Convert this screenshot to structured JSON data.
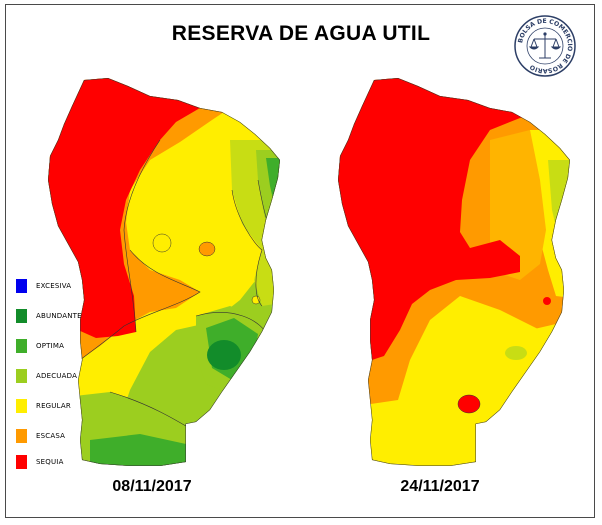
{
  "title": "RESERVA DE AGUA UTIL",
  "seal": {
    "text": "BOLSA DE COMERCIO DE ROSARIO",
    "icon": "scales-of-justice-logo"
  },
  "legend": {
    "items": [
      {
        "label": "EXCESIVA",
        "color": "#0000ee"
      },
      {
        "label": "ABUNDANTE",
        "color": "#128c2a"
      },
      {
        "label": "OPTIMA",
        "color": "#3fae2a"
      },
      {
        "label": "ADECUADA",
        "color": "#9cce1f"
      },
      {
        "label": "REGULAR",
        "color": "#ffee00"
      },
      {
        "label": "ESCASA",
        "color": "#ff9a00"
      },
      {
        "label": "SEQUIA",
        "color": "#ff0000"
      }
    ]
  },
  "maps": [
    {
      "date": "08/11/2017"
    },
    {
      "date": "24/11/2017"
    }
  ]
}
